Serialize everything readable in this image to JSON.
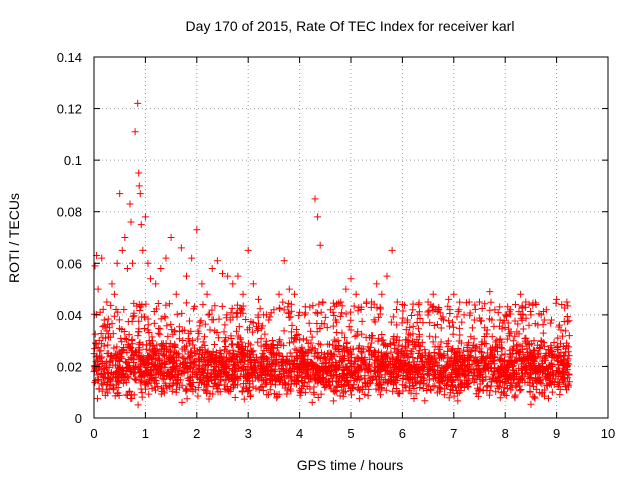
{
  "chart_data": {
    "type": "scatter",
    "title": "Day 170 of 2015, Rate Of TEC Index for receiver karl",
    "xlabel": "GPS time / hours",
    "ylabel": "ROTI / TECUs",
    "xlim": [
      0,
      10
    ],
    "ylim": [
      0,
      0.14
    ],
    "xticks": [
      0,
      1,
      2,
      3,
      4,
      5,
      6,
      7,
      8,
      9,
      10
    ],
    "yticks": [
      0,
      0.02,
      0.04,
      0.06,
      0.08,
      0.1,
      0.12,
      0.14
    ],
    "xtick_labels": [
      "0",
      "1",
      "2",
      "3",
      "4",
      "5",
      "6",
      "7",
      "8",
      "9",
      "10"
    ],
    "ytick_labels": [
      "0",
      "0.02",
      "0.04",
      "0.06",
      "0.08",
      "0.1",
      "0.12",
      "0.14"
    ],
    "grid": true,
    "marker": "+",
    "color": "#ff0000",
    "series": [
      {
        "name": "ROTI",
        "x": [
          0.02,
          0.05,
          0.08,
          0.12,
          0.15,
          0.2,
          0.25,
          0.3,
          0.35,
          0.4,
          0.45,
          0.5,
          0.55,
          0.6,
          0.65,
          0.7,
          0.72,
          0.75,
          0.8,
          0.85,
          0.87,
          0.88,
          0.9,
          0.92,
          0.95,
          1.0,
          1.05,
          1.1,
          1.2,
          1.3,
          1.4,
          1.5,
          1.6,
          1.7,
          1.8,
          1.9,
          2.0,
          2.1,
          2.2,
          2.3,
          2.4,
          2.5,
          2.6,
          2.7,
          2.8,
          2.9,
          3.0,
          3.1,
          3.2,
          3.3,
          3.4,
          3.5,
          3.6,
          3.7,
          3.8,
          3.9,
          4.0,
          4.1,
          4.2,
          4.3,
          4.35,
          4.4,
          4.45,
          4.5,
          4.6,
          4.7,
          4.8,
          4.9,
          5.0,
          5.1,
          5.2,
          5.3,
          5.4,
          5.5,
          5.6,
          5.7,
          5.8,
          5.9,
          6.0,
          6.1,
          6.2,
          6.3,
          6.4,
          6.5,
          6.6,
          6.7,
          6.8,
          6.9,
          7.0,
          7.1,
          7.2,
          7.3,
          7.4,
          7.5,
          7.6,
          7.7,
          7.8,
          7.9,
          8.0,
          8.1,
          8.2,
          8.3,
          8.4,
          8.5,
          8.6,
          8.7,
          8.8,
          8.9,
          9.0,
          9.1,
          9.2
        ],
        "y": [
          0.059,
          0.063,
          0.05,
          0.041,
          0.062,
          0.038,
          0.045,
          0.035,
          0.052,
          0.048,
          0.06,
          0.087,
          0.065,
          0.07,
          0.058,
          0.083,
          0.076,
          0.06,
          0.111,
          0.122,
          0.095,
          0.09,
          0.087,
          0.075,
          0.065,
          0.078,
          0.06,
          0.054,
          0.052,
          0.058,
          0.062,
          0.07,
          0.048,
          0.066,
          0.055,
          0.062,
          0.073,
          0.052,
          0.048,
          0.058,
          0.061,
          0.056,
          0.055,
          0.052,
          0.055,
          0.048,
          0.065,
          0.052,
          0.046,
          0.04,
          0.038,
          0.042,
          0.048,
          0.061,
          0.05,
          0.048,
          0.041,
          0.04,
          0.043,
          0.085,
          0.078,
          0.067,
          0.045,
          0.039,
          0.042,
          0.038,
          0.045,
          0.05,
          0.054,
          0.048,
          0.043,
          0.045,
          0.045,
          0.052,
          0.048,
          0.055,
          0.065,
          0.045,
          0.044,
          0.038,
          0.042,
          0.04,
          0.037,
          0.045,
          0.048,
          0.042,
          0.038,
          0.046,
          0.048,
          0.042,
          0.04,
          0.045,
          0.038,
          0.045,
          0.035,
          0.049,
          0.042,
          0.038,
          0.04,
          0.042,
          0.044,
          0.048,
          0.045,
          0.04,
          0.044,
          0.04,
          0.042,
          0.038,
          0.046,
          0.044,
          0.045
        ],
        "background_band": {
          "x_range": [
            0,
            9.25
          ],
          "y_range": [
            0.004,
            0.03
          ]
        }
      }
    ]
  }
}
